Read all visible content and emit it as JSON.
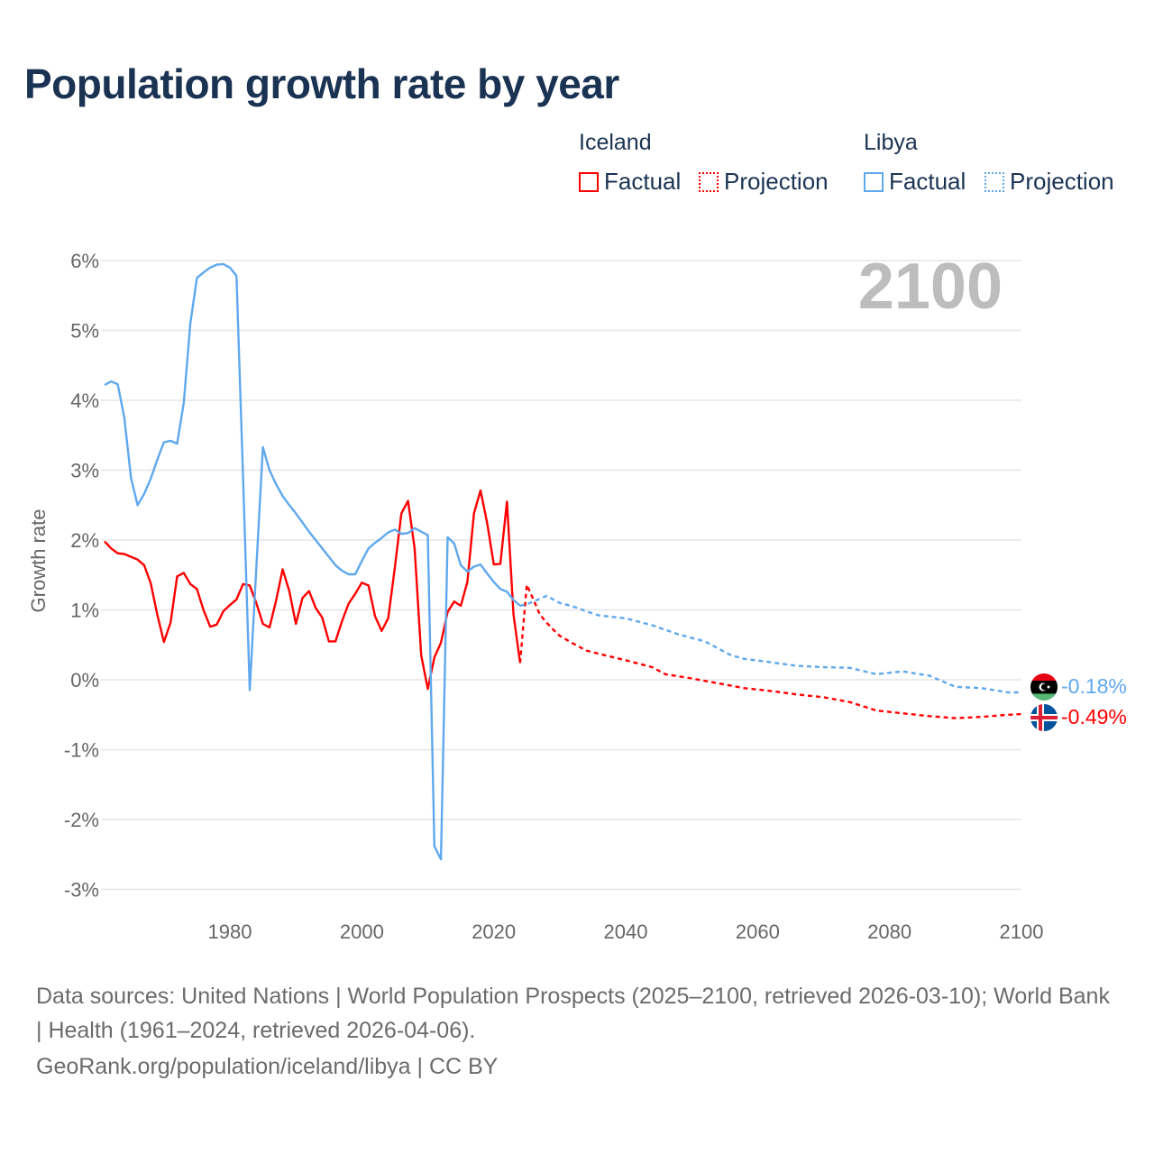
{
  "title": "Population growth rate by year",
  "legend": {
    "groups": [
      {
        "country": "Iceland",
        "factual": "Factual",
        "projection": "Projection",
        "color": "#ff0000"
      },
      {
        "country": "Libya",
        "factual": "Factual",
        "projection": "Projection",
        "color": "#5fa8ee"
      }
    ]
  },
  "year_label": "2100",
  "end_labels": {
    "libya": "-0.18%",
    "iceland": "-0.49%"
  },
  "footer": {
    "sources": "Data sources: United Nations | World Population Prospects (2025–2100, retrieved 2026-03-10); World Bank | Health (1961–2024, retrieved 2026-04-06).",
    "credit": "GeoRank.org/population/iceland/libya | CC BY"
  },
  "chart_data": {
    "type": "line",
    "title": "Population growth rate by year",
    "xlabel": "",
    "ylabel": "Growth rate",
    "xlim": [
      1961,
      2100
    ],
    "ylim": [
      -3.3,
      6.2
    ],
    "xticks": [
      1980,
      2000,
      2020,
      2040,
      2060,
      2080,
      2100
    ],
    "xtick_labels": [
      "1980",
      "2000",
      "2020",
      "2040",
      "2060",
      "2080",
      "2100"
    ],
    "yticks": [
      6,
      5,
      4,
      3,
      2,
      1,
      0,
      -1,
      -2,
      -3
    ],
    "ytick_labels": [
      "6%",
      "5%",
      "4%",
      "3%",
      "2%",
      "1%",
      "0%",
      "-1%",
      "-2%",
      "-3%"
    ],
    "grid": true,
    "legend_position": "top-right",
    "series": [
      {
        "name": "Iceland Factual",
        "color": "#ff0000",
        "style": "solid",
        "x_start": 1961,
        "values": [
          1.98,
          1.88,
          1.81,
          1.8,
          1.76,
          1.72,
          1.64,
          1.38,
          0.93,
          0.54,
          0.82,
          1.48,
          1.53,
          1.37,
          1.3,
          1.0,
          0.76,
          0.79,
          0.98,
          1.07,
          1.15,
          1.37,
          1.35,
          1.1,
          0.8,
          0.75,
          1.13,
          1.58,
          1.27,
          0.8,
          1.17,
          1.27,
          1.03,
          0.89,
          0.55,
          0.55,
          0.84,
          1.09,
          1.23,
          1.39,
          1.35,
          0.91,
          0.7,
          0.88,
          1.6,
          2.38,
          2.56,
          1.88,
          0.35,
          -0.13,
          0.32,
          0.53,
          0.97,
          1.12,
          1.06,
          1.4,
          2.38,
          2.71,
          2.24,
          1.65,
          1.66,
          2.55,
          0.93,
          0.24
        ]
      },
      {
        "name": "Iceland Projection",
        "color": "#ff0000",
        "style": "dotted",
        "x": [
          2024,
          2025,
          2026,
          2027,
          2028,
          2029,
          2030,
          2032,
          2034,
          2036,
          2040,
          2044,
          2046,
          2050,
          2054,
          2058,
          2062,
          2066,
          2070,
          2074,
          2078,
          2082,
          2086,
          2090,
          2094,
          2098,
          2100
        ],
        "values": [
          0.24,
          1.36,
          1.15,
          0.93,
          0.82,
          0.72,
          0.63,
          0.52,
          0.42,
          0.37,
          0.28,
          0.18,
          0.08,
          0.02,
          -0.05,
          -0.12,
          -0.16,
          -0.21,
          -0.25,
          -0.32,
          -0.44,
          -0.48,
          -0.52,
          -0.55,
          -0.53,
          -0.5,
          -0.49
        ]
      },
      {
        "name": "Libya Factual",
        "color": "#5fa8ee",
        "style": "solid",
        "x_start": 1961,
        "values": [
          4.22,
          4.27,
          4.23,
          3.75,
          2.89,
          2.5,
          2.66,
          2.88,
          3.15,
          3.4,
          3.42,
          3.38,
          3.96,
          5.1,
          5.75,
          5.83,
          5.9,
          5.94,
          5.95,
          5.9,
          5.78,
          2.9,
          -0.15,
          1.6,
          3.33,
          3.0,
          2.8,
          2.63,
          2.5,
          2.38,
          2.25,
          2.12,
          2.0,
          1.88,
          1.76,
          1.64,
          1.56,
          1.51,
          1.51,
          1.7,
          1.88,
          1.96,
          2.03,
          2.11,
          2.15,
          2.09,
          2.1,
          2.17,
          2.12,
          2.07,
          -2.38,
          -2.57,
          2.04,
          1.95,
          1.64,
          1.55,
          1.62,
          1.65,
          1.52,
          1.4,
          1.3,
          1.26,
          1.14,
          1.06
        ]
      },
      {
        "name": "Libya Projection",
        "color": "#5fa8ee",
        "style": "dotted",
        "x": [
          2024,
          2025,
          2026,
          2028,
          2030,
          2032,
          2034,
          2036,
          2040,
          2044,
          2048,
          2052,
          2056,
          2058,
          2062,
          2066,
          2070,
          2074,
          2078,
          2082,
          2086,
          2090,
          2094,
          2098,
          2100
        ],
        "values": [
          1.06,
          1.08,
          1.12,
          1.2,
          1.1,
          1.05,
          0.98,
          0.92,
          0.88,
          0.78,
          0.65,
          0.55,
          0.35,
          0.3,
          0.25,
          0.2,
          0.18,
          0.17,
          0.08,
          0.12,
          0.06,
          -0.1,
          -0.12,
          -0.18,
          -0.18
        ]
      }
    ]
  }
}
